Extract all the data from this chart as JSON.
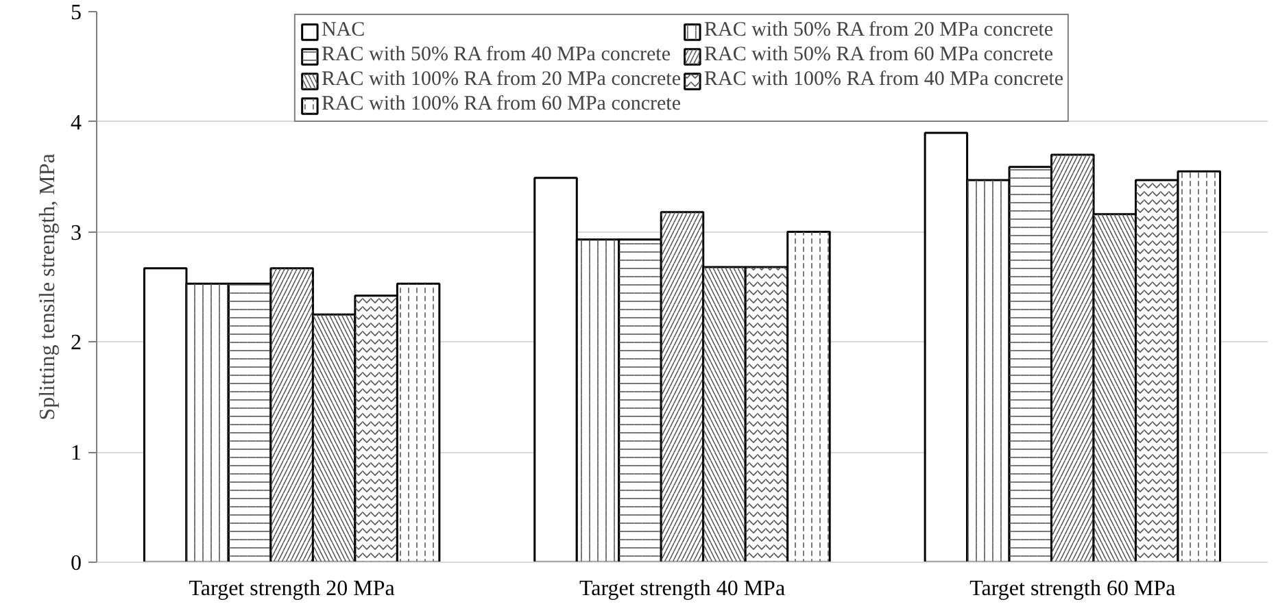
{
  "chart_data": {
    "type": "bar",
    "ylabel": "Splitting tensile strength, MPa",
    "categories": [
      "Target strength 20 MPa",
      "Target strength 40 MPa",
      "Target strength 60 MPa"
    ],
    "series": [
      {
        "name": "NAC",
        "color": "#ffffff",
        "values": [
          2.67,
          3.49,
          3.9
        ]
      },
      {
        "name": "RAC with 50% RA from 20 MPa concrete",
        "color": "#ffffff",
        "values": [
          2.53,
          2.93,
          3.47
        ]
      },
      {
        "name": "RAC with 50% RA from 40 MPa concrete",
        "color": "#ffffff",
        "values": [
          2.53,
          2.93,
          3.59
        ]
      },
      {
        "name": "RAC with 50% RA from 60 MPa concrete",
        "color": "#ffffff",
        "values": [
          2.67,
          3.18,
          3.7
        ]
      },
      {
        "name": "RAC with 100% RA from 20 MPa concrete",
        "color": "#ffffff",
        "values": [
          2.25,
          2.68,
          3.16
        ]
      },
      {
        "name": "RAC with 100% RA from 40 MPa concrete",
        "color": "#ffffff",
        "values": [
          2.42,
          2.68,
          3.47
        ]
      },
      {
        "name": "RAC with 100% RA from 60 MPa concrete",
        "color": "#ffffff",
        "values": [
          2.53,
          3.0,
          3.55
        ]
      }
    ],
    "ylim": [
      0,
      5
    ],
    "yticks": [
      0,
      1,
      2,
      3,
      4,
      5
    ],
    "grid": "y",
    "legend": "top"
  }
}
